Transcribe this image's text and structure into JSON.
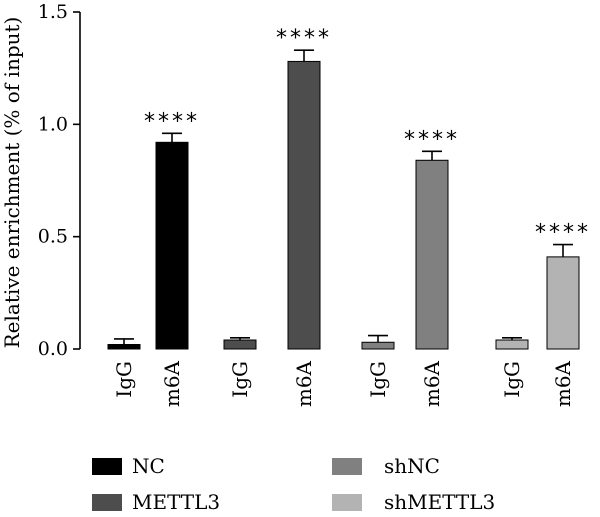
{
  "chart_data": {
    "type": "bar",
    "ylabel": "Relative enrichment (% of input)",
    "ylim": [
      0,
      1.5
    ],
    "yticks": [
      "0.0",
      "0.5",
      "1.0",
      "1.5"
    ],
    "tick_values": [
      0,
      0.5,
      1.0,
      1.5
    ],
    "categories": [
      "IgG",
      "m6A",
      "IgG",
      "m6A",
      "IgG",
      "m6A",
      "IgG",
      "m6A"
    ],
    "values": [
      0.02,
      0.92,
      0.04,
      1.28,
      0.03,
      0.84,
      0.04,
      0.41
    ],
    "errors": [
      0.025,
      0.04,
      0.01,
      0.05,
      0.03,
      0.04,
      0.01,
      0.055
    ],
    "groups": [
      "NC",
      "NC",
      "METTL3",
      "METTL3",
      "shNC",
      "shNC",
      "shMETTL3",
      "shMETTL3"
    ],
    "significance": [
      "",
      "****",
      "",
      "****",
      "",
      "****",
      "",
      "****"
    ],
    "series": [
      {
        "name": "NC",
        "color": "#000000"
      },
      {
        "name": "METTL3",
        "color": "#4d4d4d"
      },
      {
        "name": "shNC",
        "color": "#808080"
      },
      {
        "name": "shMETTL3",
        "color": "#b3b3b3"
      }
    ],
    "legend": "bottom",
    "grid": false
  }
}
